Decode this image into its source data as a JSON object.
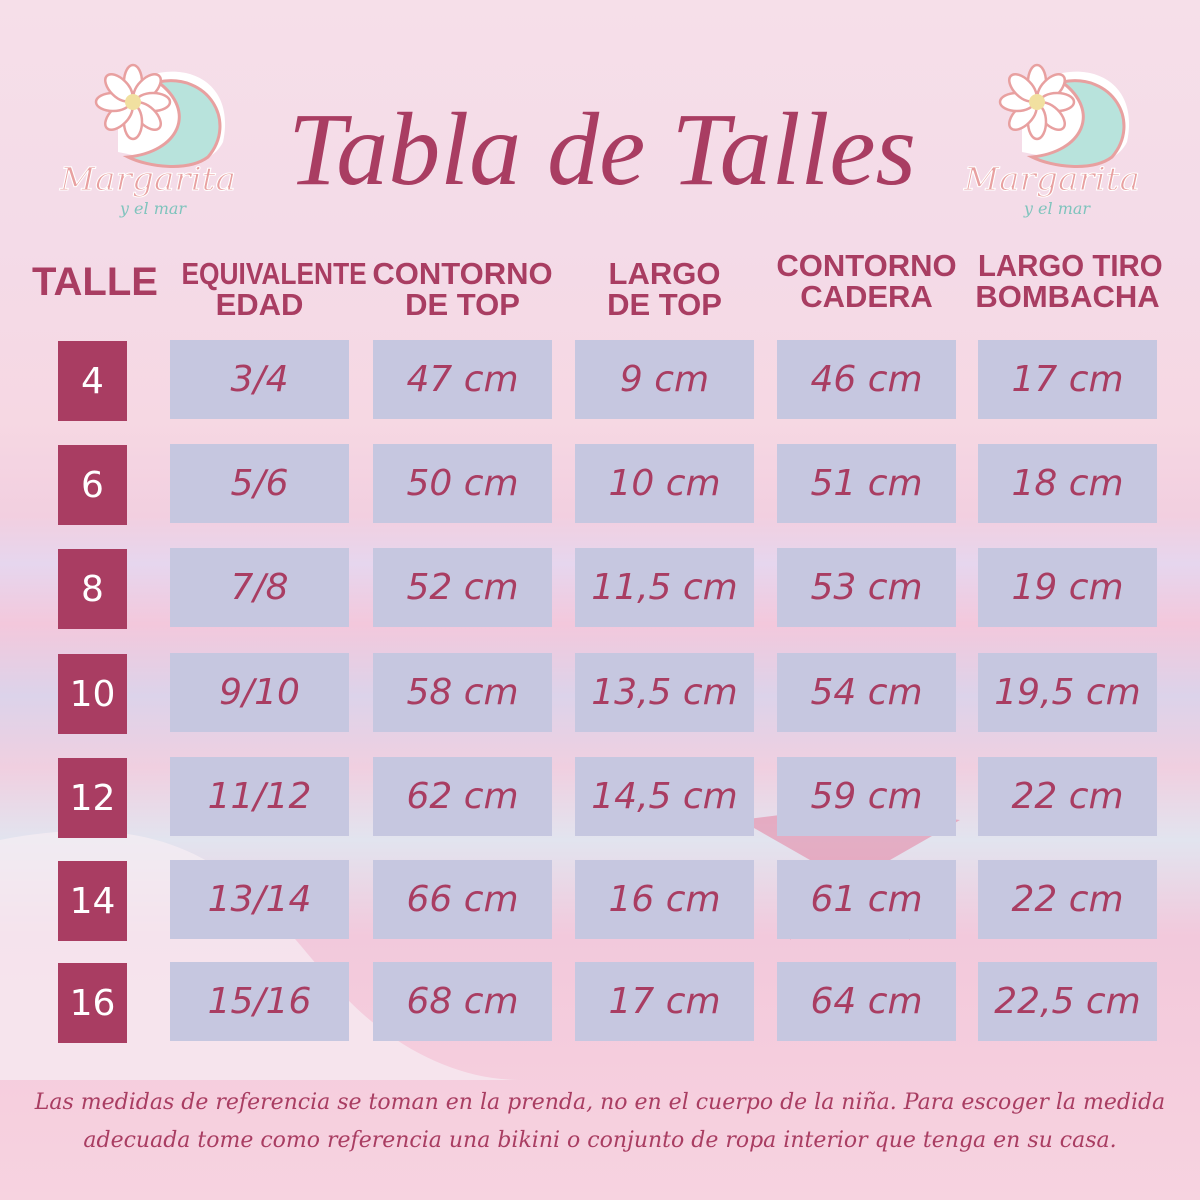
{
  "brand": {
    "name": "Margarita",
    "tagline": "y el mar"
  },
  "title": "Tabla de Talles",
  "colors": {
    "accent": "#a93d62",
    "cell": "#c6c7e0",
    "logo_pink": "#e8a0a0",
    "logo_teal": "#b8e3dc"
  },
  "headers": [
    [
      "TALLE"
    ],
    [
      "EQUIVALENTE",
      "EDAD"
    ],
    [
      "CONTORNO",
      "DE TOP"
    ],
    [
      "LARGO",
      "DE TOP"
    ],
    [
      "CONTORNO",
      "CADERA"
    ],
    [
      "LARGO TIRO",
      "BOMBACHA"
    ]
  ],
  "rows": [
    {
      "talle": "4",
      "cells": [
        "3/4",
        "47 cm",
        "9 cm",
        "46 cm",
        "17 cm"
      ]
    },
    {
      "talle": "6",
      "cells": [
        "5/6",
        "50 cm",
        "10 cm",
        "51 cm",
        "18 cm"
      ]
    },
    {
      "talle": "8",
      "cells": [
        "7/8",
        "52 cm",
        "11,5 cm",
        "53 cm",
        "19 cm"
      ]
    },
    {
      "talle": "10",
      "cells": [
        "9/10",
        "58 cm",
        "13,5 cm",
        "54 cm",
        "19,5 cm"
      ]
    },
    {
      "talle": "12",
      "cells": [
        "11/12",
        "62 cm",
        "14,5 cm",
        "59 cm",
        "22 cm"
      ]
    },
    {
      "talle": "14",
      "cells": [
        "13/14",
        "66 cm",
        "16 cm",
        "61 cm",
        "22 cm"
      ]
    },
    {
      "talle": "16",
      "cells": [
        "15/16",
        "68 cm",
        "17 cm",
        "64 cm",
        "22,5 cm"
      ]
    }
  ],
  "footer": {
    "line1": "Las medidas de referencia se toman en la prenda, no en el cuerpo de la niña. Para escoger la medida",
    "line2": "adecuada tome como referencia una bikini o conjunto de ropa interior que tenga en su casa."
  }
}
